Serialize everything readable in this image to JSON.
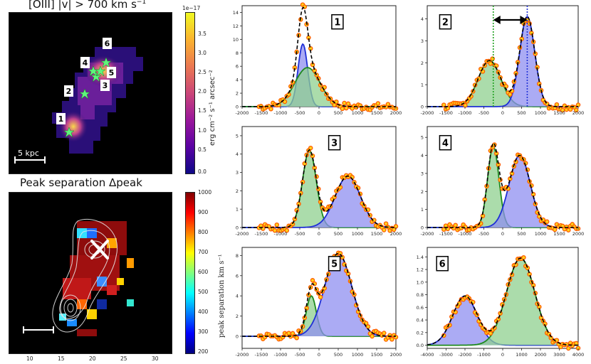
{
  "colors": {
    "observed": "#ff5a00",
    "observed_fill": "#ffd21a",
    "fit_total": "#000000",
    "blue_comp": "#1f2fd6",
    "green_comp": "#1e8a1e",
    "blue_fill": "#8f8ff0",
    "green_fill": "#8fd08f",
    "marker": "#5ef57a"
  },
  "map1": {
    "title": "[OIII] |v| > 700 km s",
    "title_sup": "−1",
    "scalebar_label": "5 kpc",
    "colorbar": {
      "exponent": "1e−17",
      "label": "erg cm⁻² s⁻¹ arcsec⁻²",
      "ticks": [
        "3.5",
        "3.0",
        "2.5",
        "2.0",
        "1.5",
        "1.0",
        "0.5",
        "0.0"
      ]
    },
    "region_labels": [
      "1",
      "2",
      "3",
      "4",
      "5",
      "6"
    ]
  },
  "map2": {
    "title": "Peak separation Δpeak",
    "colorbar": {
      "label": "peak separation km s⁻¹",
      "ticks": [
        "1000",
        "900",
        "800",
        "700",
        "600",
        "500",
        "400",
        "300",
        "200"
      ]
    },
    "x_ticks": [
      "10",
      "15",
      "20",
      "25",
      "30"
    ]
  },
  "chart_data": [
    {
      "type": "line",
      "panel": "1",
      "xlim": [
        -2000,
        2000
      ],
      "ylim": [
        0,
        15
      ],
      "x_ticks": [
        "-2000",
        "-1500",
        "-1000",
        "-500",
        "0",
        "500",
        "1000",
        "1500",
        "2000"
      ],
      "y_ticks": [
        "0",
        "2",
        "4",
        "6",
        "8",
        "10",
        "12",
        "14"
      ],
      "series": [
        {
          "name": "blue component",
          "color": "blue",
          "amplitude": 9.3,
          "center": -420,
          "sigma": 125
        },
        {
          "name": "green component",
          "color": "green",
          "amplitude": 5.8,
          "center": -300,
          "sigma": 330
        }
      ]
    },
    {
      "type": "line",
      "panel": "2",
      "xlim": [
        -2000,
        2000
      ],
      "ylim": [
        0,
        4.6
      ],
      "x_ticks": [
        "-2000",
        "-1500",
        "-1000",
        "-500",
        "0",
        "500",
        "1000",
        "1500",
        "2000"
      ],
      "y_ticks": [
        "0",
        "1",
        "2",
        "3",
        "4"
      ],
      "series": [
        {
          "name": "green component",
          "color": "green",
          "amplitude": 2.1,
          "center": -350,
          "sigma": 300
        },
        {
          "name": "blue component",
          "color": "blue",
          "amplitude": 4.1,
          "center": 650,
          "sigma": 200
        }
      ],
      "vlines": [
        -250,
        650
      ]
    },
    {
      "type": "line",
      "panel": "3",
      "xlim": [
        -2000,
        2000
      ],
      "ylim": [
        0,
        5.5
      ],
      "x_ticks": [
        "-2000",
        "-1500",
        "-1000",
        "-500",
        "0",
        "500",
        "1000",
        "1500",
        "2000"
      ],
      "y_ticks": [
        "0",
        "1",
        "2",
        "3",
        "4",
        "5"
      ],
      "series": [
        {
          "name": "green component",
          "color": "green",
          "amplitude": 4.2,
          "center": -250,
          "sigma": 180
        },
        {
          "name": "blue component",
          "color": "blue",
          "amplitude": 2.8,
          "center": 750,
          "sigma": 330
        }
      ]
    },
    {
      "type": "line",
      "panel": "4",
      "xlim": [
        -2000,
        2000
      ],
      "ylim": [
        0,
        5.6
      ],
      "x_ticks": [
        "-2000",
        "-1500",
        "-1000",
        "-500",
        "0",
        "500",
        "1000",
        "1500",
        "2000"
      ],
      "y_ticks": [
        "0",
        "1",
        "2",
        "3",
        "4",
        "5"
      ],
      "series": [
        {
          "name": "green component",
          "color": "green",
          "amplitude": 4.5,
          "center": -250,
          "sigma": 150
        },
        {
          "name": "blue component",
          "color": "blue",
          "amplitude": 4.0,
          "center": 450,
          "sigma": 280
        }
      ]
    },
    {
      "type": "line",
      "panel": "5",
      "xlim": [
        -2000,
        2000
      ],
      "ylim": [
        -1.2,
        8.8
      ],
      "x_ticks": [
        "-2000",
        "-1500",
        "-1000",
        "-500",
        "0",
        "500",
        "1000",
        "1500",
        "2000"
      ],
      "y_ticks": [
        "0",
        "2",
        "4",
        "6",
        "8"
      ],
      "series": [
        {
          "name": "green component",
          "color": "green",
          "amplitude": 4.0,
          "center": -200,
          "sigma": 130
        },
        {
          "name": "blue component",
          "color": "blue",
          "amplitude": 8.2,
          "center": 500,
          "sigma": 350
        }
      ]
    },
    {
      "type": "line",
      "panel": "6",
      "xlim": [
        -4000,
        4000
      ],
      "ylim": [
        -0.05,
        1.55
      ],
      "x_ticks": [
        "-4000",
        "-3000",
        "-2000",
        "-1000",
        "0",
        "1000",
        "2000",
        "3000",
        "4000"
      ],
      "y_ticks": [
        "0.0",
        "0.2",
        "0.4",
        "0.6",
        "0.8",
        "1.0",
        "1.2",
        "1.4"
      ],
      "series": [
        {
          "name": "blue component",
          "color": "blue",
          "amplitude": 0.78,
          "center": -2000,
          "sigma": 650
        },
        {
          "name": "green component",
          "color": "green",
          "amplitude": 1.38,
          "center": 950,
          "sigma": 750
        }
      ]
    }
  ]
}
